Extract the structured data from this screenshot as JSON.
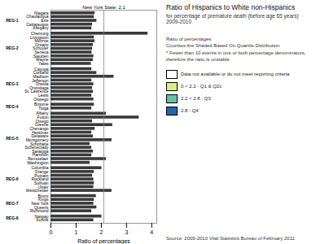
{
  "chart_data": {
    "type": "bar",
    "orientation": "horizontal",
    "title": "Ratio of Hispanics to White non-Hispanics",
    "subtitle": "for percentage of premature death (before age 65 years)\n2009-2010",
    "xlabel": "Ratio of percentages",
    "color": "#3a3a3a",
    "xlim": [
      0,
      4.2
    ],
    "xticks": [
      0,
      1,
      2,
      3,
      4
    ],
    "reference_line": {
      "value": 2.1,
      "label": "New York State: 2.1"
    },
    "groups": [
      {
        "name": "REG-1",
        "categories": [
          "Niagara",
          "Chautauqua",
          "Erie",
          "Cattaraugus",
          "Allegany"
        ],
        "values": [
          1.75,
          1.72,
          1.82,
          1.65,
          1.62
        ]
      },
      {
        "name": "REG-2",
        "categories": [
          "Chemung",
          "Livingston",
          "Monroe",
          "Ontario",
          "Schuyler",
          "Seneca",
          "Steuben",
          "Wayne",
          "Yates"
        ],
        "values": [
          3.85,
          1.72,
          1.75,
          1.68,
          1.65,
          1.63,
          1.7,
          1.68,
          1.6
        ]
      },
      {
        "name": "REG-3",
        "categories": [
          "Cayuga",
          "Cortland",
          "Madison",
          "Jefferson",
          "Oneida",
          "Onondaga",
          "St. Lawrence",
          "Lewis",
          "Oswego"
        ],
        "values": [
          1.62,
          1.82,
          2.5,
          1.62,
          1.7,
          1.65,
          1.68,
          1.62,
          1.7
        ]
      },
      {
        "name": "REG-4",
        "categories": [
          "Broome",
          "Tioga"
        ],
        "values": [
          1.72,
          1.62
        ]
      },
      {
        "name": "REG-5",
        "categories": [
          "Albany",
          "Fulton",
          "Otsego",
          "Greene",
          "Chenango",
          "Herkimer",
          "Delaware",
          "Montgomery",
          "Schoharie",
          "Schenectady",
          "Saratoga",
          "Hamilton",
          "Rensselaer",
          "Washington"
        ],
        "values": [
          2.2,
          3.5,
          1.65,
          2.45,
          1.75,
          1.62,
          1.68,
          2.42,
          1.55,
          1.62,
          1.68,
          1.62,
          2.2,
          1.55
        ]
      },
      {
        "name": "REG-6",
        "categories": [
          "Columbia",
          "Orange",
          "Putnam",
          "Rockland",
          "Sullivan",
          "Ulster",
          "Westchester"
        ],
        "values": [
          2.02,
          1.72,
          1.65,
          1.7,
          1.72,
          1.7,
          2.42
        ]
      },
      {
        "name": "REG-7",
        "categories": [
          "Bronx",
          "Kings",
          "New York",
          "Queens",
          "Richmond"
        ],
        "values": [
          1.8,
          1.72,
          1.7,
          1.82,
          1.62
        ]
      },
      {
        "name": "REG-8",
        "categories": [
          "Nassau",
          "Suffolk"
        ],
        "values": [
          2.02,
          1.7
        ]
      }
    ],
    "map_legend": [
      {
        "label": "Data not available or do not meet reporting criteria",
        "color": "#ffffff"
      },
      {
        "label": "0 < 2.2 - Q1 & Q2c",
        "color": "#d9ef8b"
      },
      {
        "label": "2.2 < 2.8 - Q3",
        "color": "#66c2a5"
      },
      {
        "label": "2.8 - Q4",
        "color": "#2166ac"
      }
    ],
    "note": "Ratio of percentages\nCounties Are Shaded Based On Quartile Distribution\n* Fewer than 10 events in one or both percentage denominators, therefore the ratio is unstable",
    "source": "Source: 2009-2010 Vital Statistics Bureau of February 2011"
  }
}
